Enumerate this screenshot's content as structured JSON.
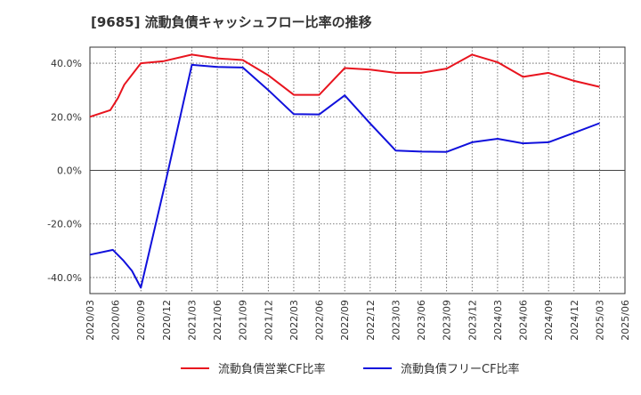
{
  "chart_data": {
    "type": "line",
    "title": "[9685]  流動負債キャッシュフロー比率の推移",
    "xlabel": "",
    "ylabel": "",
    "ylim": [
      -46,
      46
    ],
    "yticks": [
      -40,
      -20,
      0,
      20,
      40
    ],
    "ytick_labels": [
      "-40.0%",
      "-20.0%",
      "0.0%",
      "20.0%",
      "40.0%"
    ],
    "categories": [
      "2020/03",
      "2020/06",
      "2020/09",
      "2020/12",
      "2021/03",
      "2021/06",
      "2021/09",
      "2021/12",
      "2022/03",
      "2022/06",
      "2022/09",
      "2022/12",
      "2023/03",
      "2023/06",
      "2023/09",
      "2023/12",
      "2024/03",
      "2024/06",
      "2024/09",
      "2024/12",
      "2025/03",
      "2025/06"
    ],
    "grid": true,
    "legend_position": "bottom",
    "series": [
      {
        "name": "流動負債営業CF比率",
        "color": "#e8141e",
        "points": [
          [
            0,
            20.0
          ],
          [
            0.8,
            22.5
          ],
          [
            1.1,
            27.0
          ],
          [
            1.35,
            32.0
          ],
          [
            2.0,
            40.0
          ],
          [
            2.9,
            40.8
          ],
          [
            4.0,
            43.2
          ],
          [
            5.0,
            41.8
          ],
          [
            6.0,
            41.2
          ],
          [
            7.0,
            35.5
          ],
          [
            8.0,
            28.2
          ],
          [
            9.0,
            28.2
          ],
          [
            10.0,
            38.2
          ],
          [
            11.0,
            37.6
          ],
          [
            12.0,
            36.4
          ],
          [
            13.0,
            36.4
          ],
          [
            14.0,
            38.0
          ],
          [
            15.0,
            43.2
          ],
          [
            16.0,
            40.4
          ],
          [
            17.0,
            34.9
          ],
          [
            18.0,
            36.4
          ],
          [
            19.0,
            33.4
          ],
          [
            20.0,
            31.2
          ]
        ]
      },
      {
        "name": "流動負債フリーCF比率",
        "color": "#1010dc",
        "points": [
          [
            0,
            -31.5
          ],
          [
            0.9,
            -29.7
          ],
          [
            1.3,
            -33.5
          ],
          [
            1.65,
            -37.5
          ],
          [
            2.0,
            -43.8
          ],
          [
            3.0,
            -3.0
          ],
          [
            4.0,
            39.4
          ],
          [
            5.0,
            38.6
          ],
          [
            6.0,
            38.4
          ],
          [
            7.0,
            30.0
          ],
          [
            8.0,
            21.0
          ],
          [
            9.0,
            20.9
          ],
          [
            10.0,
            28.0
          ],
          [
            11.0,
            17.5
          ],
          [
            12.0,
            7.4
          ],
          [
            13.0,
            7.0
          ],
          [
            14.0,
            6.9
          ],
          [
            15.0,
            10.5
          ],
          [
            16.0,
            11.8
          ],
          [
            17.0,
            10.1
          ],
          [
            18.0,
            10.5
          ],
          [
            19.0,
            14.0
          ],
          [
            20.0,
            17.6
          ]
        ]
      }
    ]
  }
}
